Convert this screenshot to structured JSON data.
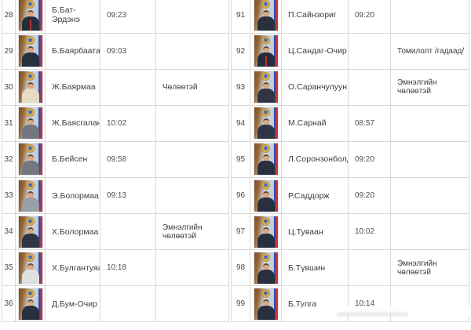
{
  "tables": [
    {
      "side": "left",
      "rows": [
        {
          "no": "28",
          "name": "Б.Бат-Эрдэнэ",
          "time": "09:23",
          "status": "",
          "photo": "male-dark-redtie"
        },
        {
          "no": "29",
          "name": "Б.Баярбаатар",
          "time": "09:03",
          "status": "",
          "photo": "male-dark"
        },
        {
          "no": "30",
          "name": "Ж.Баярмаа",
          "time": "",
          "status": "Чөлөөтэй",
          "photo": "female-cream"
        },
        {
          "no": "31",
          "name": "Ж.Баясгалан",
          "time": "10:02",
          "status": "",
          "photo": "male-gray"
        },
        {
          "no": "32",
          "name": "Б.Бейсен",
          "time": "09:58",
          "status": "",
          "photo": "male-gray"
        },
        {
          "no": "33",
          "name": "Э.Болормаа",
          "time": "09:13",
          "status": "",
          "photo": "female-gray"
        },
        {
          "no": "34",
          "name": "Х.Болормаа",
          "time": "",
          "status": "Эмнэлгийн чөлөөтэй",
          "photo": "female-dark"
        },
        {
          "no": "35",
          "name": "Х.Булгантуяа",
          "time": "10:18",
          "status": "",
          "photo": "female-white"
        },
        {
          "no": "36",
          "name": "Д.Бум-Очир",
          "time": "",
          "status": "",
          "photo": "male-dark"
        }
      ]
    },
    {
      "side": "right",
      "rows": [
        {
          "no": "91",
          "name": "П.Сайнзориг",
          "time": "09:20",
          "status": "",
          "photo": "male-dark"
        },
        {
          "no": "92",
          "name": "Ц.Сандаг-Очир",
          "time": "",
          "status": "Томилолт /гадаад/",
          "photo": "male-dark-redtie"
        },
        {
          "no": "93",
          "name": "О.Саранчулуун",
          "time": "",
          "status": "Эмнэлгийн чөлөөтэй",
          "photo": "female-dark"
        },
        {
          "no": "94",
          "name": "М.Сарнай",
          "time": "08:57",
          "status": "",
          "photo": "female-dark"
        },
        {
          "no": "95",
          "name": "Л.Соронзонболд",
          "time": "09:20",
          "status": "",
          "photo": "male-dark"
        },
        {
          "no": "96",
          "name": "Р.Саддорж",
          "time": "09:20",
          "status": "",
          "photo": "male-dark"
        },
        {
          "no": "97",
          "name": "Ц.Туваан",
          "time": "10:02",
          "status": "",
          "photo": "male-dark"
        },
        {
          "no": "98",
          "name": "Б.Түвшин",
          "time": "",
          "status": "Эмнэлгийн чөлөөтэй",
          "photo": "male-dark"
        },
        {
          "no": "99",
          "name": "Б.Тулга",
          "time": "10:14",
          "status": "",
          "photo": "male-dark"
        }
      ]
    }
  ],
  "colors": {
    "grid": "#d9d9d9",
    "text": "#3d3d3d",
    "time_text": "#4f4f4f",
    "flag_red": "#c6363c",
    "flag_blue": "#2a4fae",
    "emblem_gold": "#d9a94e"
  }
}
